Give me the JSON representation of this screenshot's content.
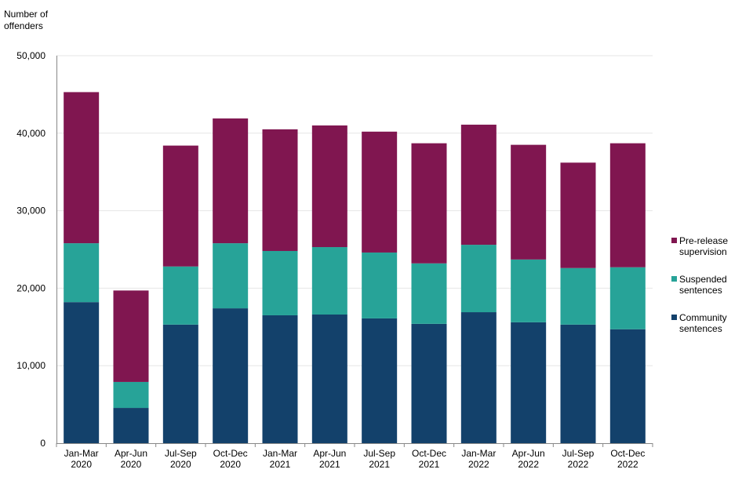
{
  "chart_data": {
    "type": "bar",
    "stacked": true,
    "ylabel": [
      "Number of",
      "offenders"
    ],
    "ylim": [
      0,
      50000
    ],
    "yticks": [
      "0",
      "10,000",
      "20,000",
      "30,000",
      "40,000",
      "50,000"
    ],
    "grid": true,
    "legend_position": "right",
    "categories": [
      [
        "Jan-Mar",
        "2020"
      ],
      [
        "Apr-Jun",
        "2020"
      ],
      [
        "Jul-Sep",
        "2020"
      ],
      [
        "Oct-Dec",
        "2020"
      ],
      [
        "Jan-Mar",
        "2021"
      ],
      [
        "Apr-Jun",
        "2021"
      ],
      [
        "Jul-Sep",
        "2021"
      ],
      [
        "Oct-Dec",
        "2021"
      ],
      [
        "Jan-Mar",
        "2022"
      ],
      [
        "Apr-Jun",
        "2022"
      ],
      [
        "Jul-Sep",
        "2022"
      ],
      [
        "Oct-Dec",
        "2022"
      ]
    ],
    "series": [
      {
        "name": [
          "Community",
          "sentences"
        ],
        "color": "#13416b",
        "values": [
          18200,
          4550,
          15300,
          17400,
          16500,
          16600,
          16100,
          15400,
          16900,
          15600,
          15300,
          14700
        ]
      },
      {
        "name": [
          "Suspended",
          "sentences"
        ],
        "color": "#27a398",
        "values": [
          7600,
          3350,
          7500,
          8400,
          8300,
          8700,
          8500,
          7800,
          8700,
          8100,
          7300,
          8000
        ]
      },
      {
        "name": [
          "Pre-release",
          "supervision"
        ],
        "color": "#801650",
        "values": [
          19500,
          11800,
          15600,
          16100,
          15700,
          15700,
          15600,
          15500,
          15500,
          14800,
          13600,
          16000
        ]
      }
    ]
  }
}
